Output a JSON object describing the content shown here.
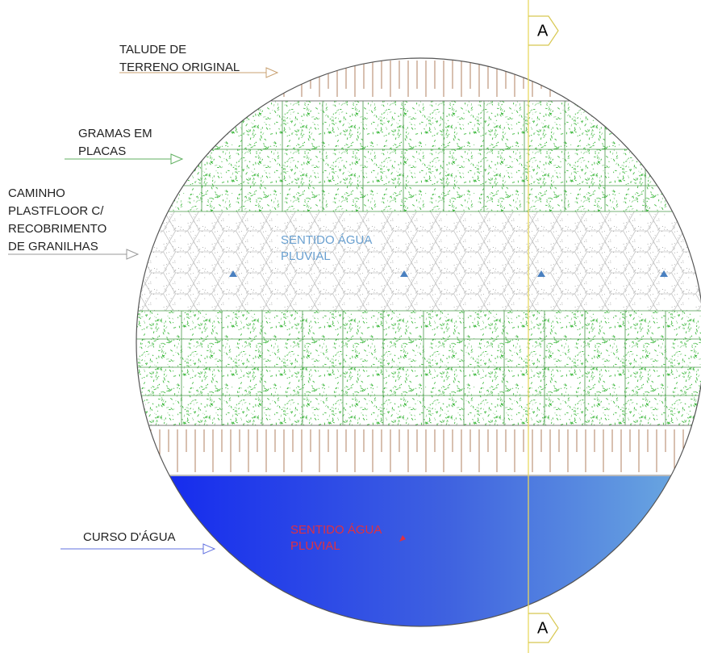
{
  "labels": [
    {
      "lines": [
        "TALUDE DE",
        "TERRENO ORIGINAL"
      ]
    },
    {
      "lines": [
        "GRAMAS EM",
        "PLACAS"
      ]
    },
    {
      "lines": [
        "CAMINHO",
        "PLASTFLOOR C/",
        "RECOBRIMENTO",
        "DE GRANILHAS"
      ]
    },
    {
      "lines": [
        "CURSO D'ÁGUA"
      ]
    }
  ],
  "flow_path": {
    "lines": [
      "SENTIDO ÁGUA",
      "PLUVIAL"
    ]
  },
  "flow_water": {
    "lines": [
      "SENTIDO ÁGUA",
      "PLUVIAL"
    ]
  },
  "section": {
    "top": "A",
    "bottom": "A"
  }
}
